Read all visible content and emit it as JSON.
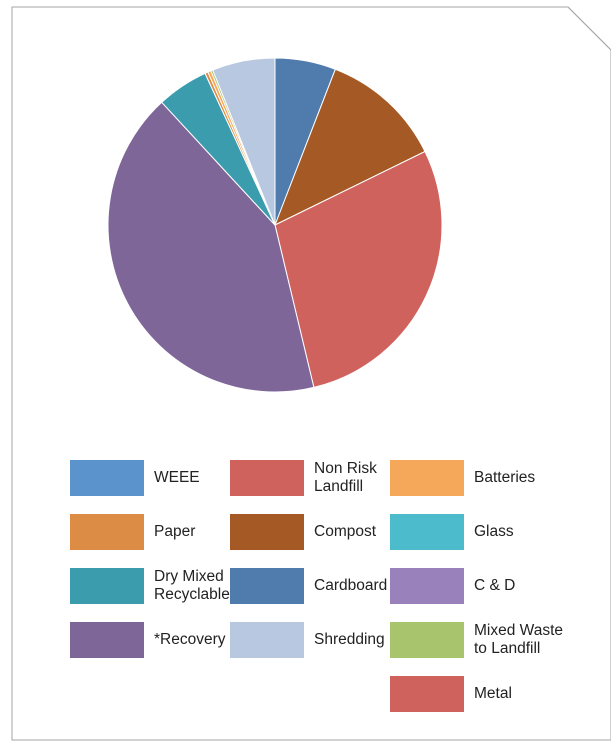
{
  "chart_data": {
    "type": "pie",
    "title": "",
    "slices": [
      {
        "label": "Cardboard",
        "value": 5.9,
        "color": "#4f7bad"
      },
      {
        "label": "Compost",
        "value": 11.9,
        "color": "#a55a25"
      },
      {
        "label": "Non Risk Landfill",
        "value": 28.6,
        "color": "#d0625e"
      },
      {
        "label": "*Recovery",
        "value": 42.0,
        "color": "#7e6699"
      },
      {
        "label": "Dry Mixed Recyclables",
        "value": 5.0,
        "color": "#3b9cae"
      },
      {
        "label": "Paper",
        "value": 0.3,
        "color": "#dd8c45"
      },
      {
        "label": "Batteries",
        "value": 0.3,
        "color": "#f6a85a"
      },
      {
        "label": "Mixed Waste to Landfill",
        "value": 0.2,
        "color": "#a8c46c"
      },
      {
        "label": "Shredding",
        "value": 6.1,
        "color": "#b8c8e0"
      }
    ],
    "legend": [
      {
        "label": "WEEE",
        "color": "#5b93cc"
      },
      {
        "label": "Non Risk\nLandfill",
        "color": "#d0625e"
      },
      {
        "label": "Batteries",
        "color": "#f6a85a"
      },
      {
        "label": "Paper",
        "color": "#dd8c45"
      },
      {
        "label": "Compost",
        "color": "#a55a25"
      },
      {
        "label": "Glass",
        "color": "#4cbccc"
      },
      {
        "label": "Dry Mixed\nRecyclables",
        "color": "#3b9cae"
      },
      {
        "label": "Cardboard",
        "color": "#4f7bad"
      },
      {
        "label": "C & D",
        "color": "#9982bb"
      },
      {
        "label": "*Recovery",
        "color": "#7e6699"
      },
      {
        "label": "Shredding",
        "color": "#b8c8e0"
      },
      {
        "label": "Mixed Waste\nto Landfill",
        "color": "#a8c46c"
      },
      {
        "label": "Metal",
        "color": "#d0625e"
      }
    ],
    "legend_position": "bottom"
  }
}
